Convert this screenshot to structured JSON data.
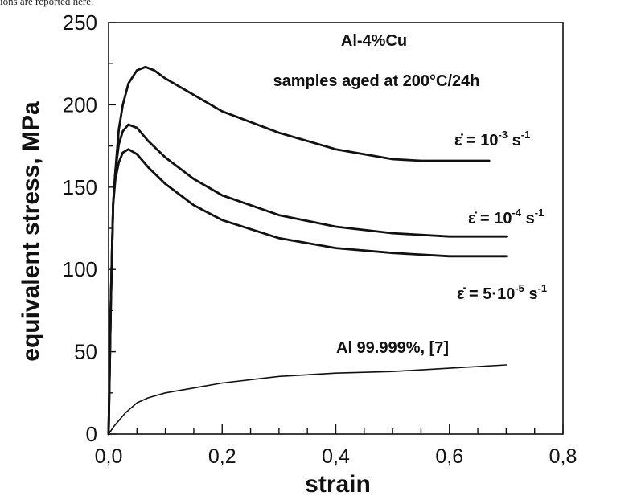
{
  "caption_fragment": "ions are reported here.",
  "chart_data": {
    "type": "line",
    "title": "",
    "xlabel": "strain",
    "ylabel": "equivalent stress, MPa",
    "xlim": [
      0.0,
      0.8
    ],
    "ylim": [
      0,
      250
    ],
    "x_tick_labels": [
      "0,0",
      "0,2",
      "0,4",
      "0,6",
      "0,8"
    ],
    "y_tick_labels": [
      "0",
      "50",
      "100",
      "150",
      "200",
      "250"
    ],
    "grid": false,
    "annotations": [
      "Al-4%Cu",
      "samples aged at 200°C/24h"
    ],
    "series": [
      {
        "name": "ε̇ = 10⁻³ s⁻¹",
        "label_parts": [
          "ε̇ = 10",
          "-3",
          " s",
          "-1"
        ],
        "x": [
          0.0,
          0.004,
          0.008,
          0.012,
          0.018,
          0.025,
          0.035,
          0.05,
          0.065,
          0.08,
          0.1,
          0.15,
          0.2,
          0.3,
          0.4,
          0.5,
          0.55,
          0.6,
          0.67
        ],
        "y": [
          0,
          80,
          140,
          160,
          185,
          200,
          213,
          221,
          223,
          221,
          216,
          206,
          196,
          183,
          173,
          167,
          166,
          166,
          166
        ]
      },
      {
        "name": "ε̇ = 10⁻⁴ s⁻¹",
        "label_parts": [
          "ε̇ = 10",
          "-4",
          " s",
          "-1"
        ],
        "x": [
          0.0,
          0.004,
          0.008,
          0.012,
          0.018,
          0.025,
          0.035,
          0.05,
          0.07,
          0.1,
          0.15,
          0.2,
          0.3,
          0.4,
          0.5,
          0.6,
          0.7
        ],
        "y": [
          0,
          80,
          140,
          160,
          176,
          184,
          188,
          186,
          178,
          168,
          155,
          145,
          133,
          126,
          122,
          120,
          120
        ]
      },
      {
        "name": "ε̇ = 5·10⁻⁵ s⁻¹",
        "label_parts": [
          "ε̇ = 5·10",
          "-5",
          " s",
          "-1"
        ],
        "x": [
          0.0,
          0.004,
          0.008,
          0.012,
          0.018,
          0.025,
          0.035,
          0.05,
          0.07,
          0.1,
          0.15,
          0.2,
          0.3,
          0.4,
          0.5,
          0.6,
          0.7
        ],
        "y": [
          0,
          80,
          140,
          155,
          165,
          171,
          173,
          170,
          162,
          152,
          139,
          130,
          119,
          113,
          110,
          108,
          108
        ]
      },
      {
        "name": "Al 99.999%, [7]",
        "label_parts": [
          "Al 99.999%, [7]"
        ],
        "x": [
          0.0,
          0.01,
          0.03,
          0.05,
          0.07,
          0.1,
          0.15,
          0.2,
          0.3,
          0.4,
          0.5,
          0.6,
          0.7
        ],
        "y": [
          0,
          5,
          13,
          19,
          22,
          25,
          28,
          31,
          35,
          37,
          38,
          40,
          42
        ]
      }
    ]
  }
}
